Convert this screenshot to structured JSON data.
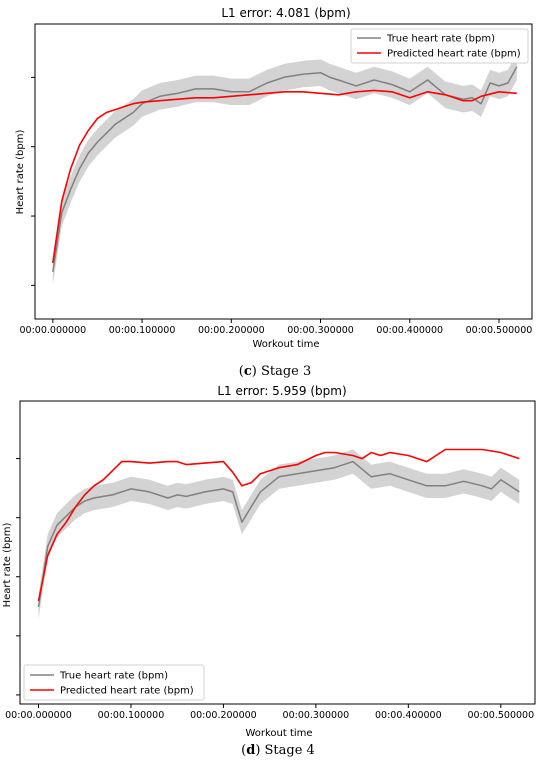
{
  "chart_data": [
    {
      "type": "line",
      "title": "L1 error: 4.081 (bpm)",
      "xlabel": "Workout time",
      "ylabel": "Heart rate (bpm)",
      "caption_letter": "c",
      "caption_text": "Stage 3",
      "xlim": [
        -0.02,
        0.537
      ],
      "ylim": [
        0,
        1
      ],
      "xticks": [
        0,
        0.1,
        0.2,
        0.3,
        0.4,
        0.5
      ],
      "xtick_labels": [
        "00:00.000000",
        "00:00.100000",
        "00:00.200000",
        "00:00.300000",
        "00:00.400000",
        "00:00.500000"
      ],
      "yticks": [
        0.114,
        0.349,
        0.584,
        0.819
      ],
      "legend_position": "top-right",
      "series": [
        {
          "name": "True heart rate (bpm)",
          "color": "#808080",
          "band": "#d3d3d3",
          "x": [
            0,
            0.01,
            0.02,
            0.03,
            0.04,
            0.05,
            0.06,
            0.07,
            0.08,
            0.09,
            0.1,
            0.12,
            0.14,
            0.16,
            0.18,
            0.2,
            0.22,
            0.24,
            0.26,
            0.28,
            0.3,
            0.31,
            0.32,
            0.34,
            0.36,
            0.38,
            0.4,
            0.42,
            0.44,
            0.46,
            0.47,
            0.48,
            0.49,
            0.5,
            0.51,
            0.52
          ],
          "y": [
            0.16,
            0.36,
            0.44,
            0.51,
            0.563,
            0.6,
            0.63,
            0.66,
            0.68,
            0.7,
            0.73,
            0.755,
            0.765,
            0.78,
            0.78,
            0.77,
            0.77,
            0.8,
            0.82,
            0.83,
            0.835,
            0.82,
            0.81,
            0.79,
            0.81,
            0.795,
            0.77,
            0.81,
            0.76,
            0.745,
            0.75,
            0.73,
            0.8,
            0.79,
            0.8,
            0.855
          ],
          "band_width": 0.045
        },
        {
          "name": "Predicted heart rate (bpm)",
          "color": "#ff0000",
          "x": [
            0,
            0.01,
            0.02,
            0.03,
            0.04,
            0.05,
            0.06,
            0.07,
            0.08,
            0.09,
            0.1,
            0.12,
            0.14,
            0.16,
            0.18,
            0.2,
            0.22,
            0.24,
            0.26,
            0.28,
            0.3,
            0.32,
            0.34,
            0.36,
            0.38,
            0.4,
            0.42,
            0.44,
            0.46,
            0.47,
            0.48,
            0.5,
            0.52
          ],
          "y": [
            0.19,
            0.4,
            0.51,
            0.59,
            0.64,
            0.68,
            0.7,
            0.71,
            0.72,
            0.73,
            0.735,
            0.74,
            0.745,
            0.75,
            0.75,
            0.755,
            0.76,
            0.765,
            0.77,
            0.77,
            0.765,
            0.76,
            0.77,
            0.775,
            0.77,
            0.75,
            0.77,
            0.76,
            0.74,
            0.74,
            0.755,
            0.77,
            0.765
          ]
        }
      ]
    },
    {
      "type": "line",
      "title": "L1 error: 5.959 (bpm)",
      "xlabel": "Workout time",
      "ylabel": "Heart rate (bpm)",
      "caption_letter": "d",
      "caption_text": "Stage 4",
      "xlim": [
        -0.02,
        0.537
      ],
      "ylim": [
        0,
        1
      ],
      "xticks": [
        0,
        0.1,
        0.2,
        0.3,
        0.4,
        0.5
      ],
      "xtick_labels": [
        "00:00.000000",
        "00:00.100000",
        "00:00.200000",
        "00:00.300000",
        "00:00.400000",
        "00:00.500000"
      ],
      "yticks": [
        0.03,
        0.225,
        0.42,
        0.615,
        0.81
      ],
      "legend_position": "bottom-left",
      "series": [
        {
          "name": "True heart rate (bpm)",
          "color": "#808080",
          "band": "#d3d3d3",
          "x": [
            0,
            0.01,
            0.02,
            0.03,
            0.04,
            0.05,
            0.06,
            0.07,
            0.08,
            0.09,
            0.1,
            0.12,
            0.14,
            0.15,
            0.16,
            0.18,
            0.2,
            0.21,
            0.22,
            0.23,
            0.24,
            0.26,
            0.28,
            0.3,
            0.32,
            0.34,
            0.35,
            0.36,
            0.38,
            0.4,
            0.42,
            0.44,
            0.46,
            0.48,
            0.49,
            0.5,
            0.51,
            0.52
          ],
          "y": [
            0.32,
            0.52,
            0.59,
            0.62,
            0.65,
            0.67,
            0.68,
            0.685,
            0.69,
            0.7,
            0.71,
            0.7,
            0.68,
            0.69,
            0.685,
            0.7,
            0.71,
            0.7,
            0.6,
            0.65,
            0.7,
            0.75,
            0.76,
            0.77,
            0.78,
            0.8,
            0.775,
            0.75,
            0.76,
            0.74,
            0.72,
            0.72,
            0.735,
            0.72,
            0.71,
            0.74,
            0.72,
            0.7
          ],
          "band_width": 0.04
        },
        {
          "name": "Predicted heart rate (bpm)",
          "color": "#ff0000",
          "x": [
            0,
            0.01,
            0.02,
            0.03,
            0.04,
            0.05,
            0.06,
            0.07,
            0.08,
            0.09,
            0.1,
            0.12,
            0.14,
            0.15,
            0.16,
            0.18,
            0.2,
            0.21,
            0.22,
            0.23,
            0.24,
            0.26,
            0.28,
            0.3,
            0.31,
            0.32,
            0.34,
            0.35,
            0.36,
            0.37,
            0.38,
            0.4,
            0.42,
            0.44,
            0.46,
            0.48,
            0.5,
            0.51,
            0.52
          ],
          "y": [
            0.34,
            0.49,
            0.56,
            0.6,
            0.65,
            0.69,
            0.72,
            0.74,
            0.77,
            0.8,
            0.8,
            0.795,
            0.8,
            0.8,
            0.79,
            0.795,
            0.8,
            0.765,
            0.72,
            0.73,
            0.76,
            0.78,
            0.79,
            0.82,
            0.83,
            0.83,
            0.82,
            0.81,
            0.83,
            0.82,
            0.83,
            0.82,
            0.8,
            0.84,
            0.84,
            0.84,
            0.83,
            0.82,
            0.81
          ]
        }
      ]
    }
  ]
}
